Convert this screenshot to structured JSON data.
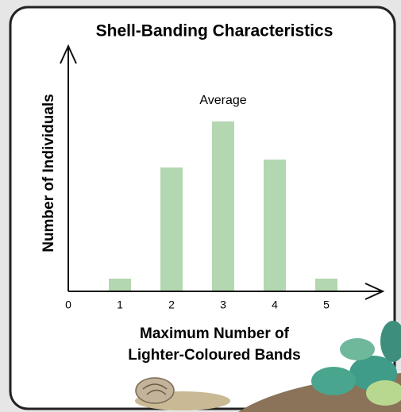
{
  "chart_data": {
    "type": "bar",
    "title": "Shell-Banding Characteristics",
    "ylabel": "Number of Individuals",
    "xlabel": [
      "Maximum Number of",
      "Lighter-Coloured Bands"
    ],
    "annotation": "Average",
    "x": [
      1,
      2,
      3,
      4,
      5
    ],
    "values": [
      16,
      156,
      214,
      166,
      16
    ],
    "color": "#b3d7b0",
    "xlim": [
      0,
      6
    ],
    "xticks": [
      0,
      1,
      2,
      3,
      4,
      5
    ],
    "ylim": [
      0,
      305
    ]
  }
}
